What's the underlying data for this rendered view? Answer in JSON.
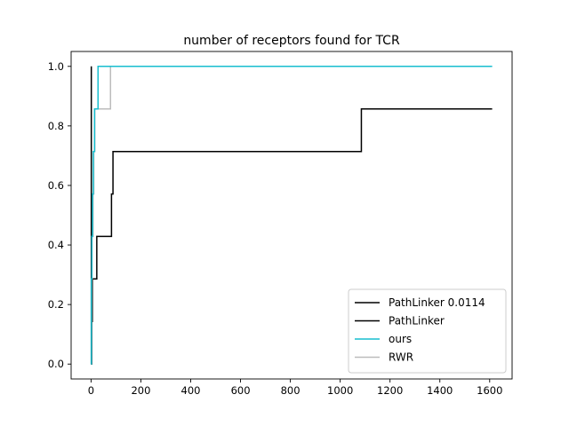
{
  "chart_data": {
    "type": "line",
    "title": "number of receptors found for TCR",
    "xlabel": "",
    "ylabel": "",
    "xlim": [
      -80,
      1690
    ],
    "ylim": [
      -0.05,
      1.05
    ],
    "xticks": [
      0,
      200,
      400,
      600,
      800,
      1000,
      1200,
      1400,
      1600
    ],
    "yticks": [
      0.0,
      0.2,
      0.4,
      0.6,
      0.8,
      1.0
    ],
    "xtick_labels": [
      "0",
      "200",
      "400",
      "600",
      "800",
      "1000",
      "1200",
      "1400",
      "1600"
    ],
    "ytick_labels": [
      "0.0",
      "0.2",
      "0.4",
      "0.6",
      "0.8",
      "1.0"
    ],
    "legend_position": "lower-right",
    "grid": false,
    "series": [
      {
        "name": "PathLinker 0.0114",
        "color": "#000000",
        "step": true,
        "points": [
          [
            0,
            0.0
          ],
          [
            1,
            1.0
          ]
        ]
      },
      {
        "name": "PathLinker",
        "color": "#000000",
        "step": true,
        "points": [
          [
            0,
            0.0
          ],
          [
            3,
            0.143
          ],
          [
            5,
            0.286
          ],
          [
            23,
            0.429
          ],
          [
            82,
            0.571
          ],
          [
            88,
            0.714
          ],
          [
            1085,
            0.857
          ],
          [
            1610,
            0.857
          ]
        ]
      },
      {
        "name": "ours",
        "color": "#17becf",
        "step": true,
        "points": [
          [
            0,
            0.0
          ],
          [
            1,
            0.286
          ],
          [
            3,
            0.429
          ],
          [
            6,
            0.571
          ],
          [
            9,
            0.714
          ],
          [
            14,
            0.857
          ],
          [
            28,
            1.0
          ],
          [
            1610,
            1.0
          ]
        ]
      },
      {
        "name": "RWR",
        "color": "#bcbcbc",
        "step": true,
        "points": [
          [
            0,
            0.0
          ],
          [
            2,
            0.286
          ],
          [
            4,
            0.429
          ],
          [
            8,
            0.571
          ],
          [
            11,
            0.714
          ],
          [
            15,
            0.857
          ],
          [
            78,
            1.0
          ],
          [
            1610,
            1.0
          ]
        ]
      }
    ]
  }
}
